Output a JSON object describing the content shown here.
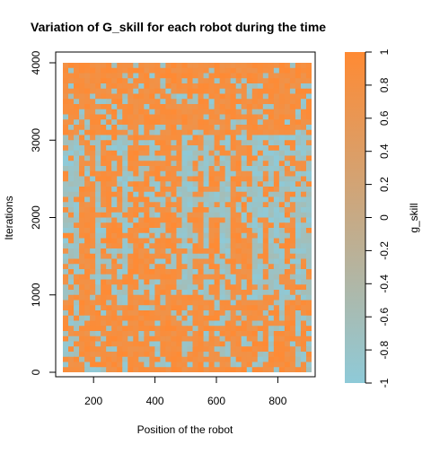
{
  "chart_data": {
    "type": "heatmap",
    "title": "Variation of G_skill for each robot during the time",
    "xlabel": "Position of the robot",
    "ylabel": "Iterations",
    "xlim": [
      100,
      910
    ],
    "ylim": [
      0,
      4000
    ],
    "x_ticks": [
      "200",
      "400",
      "600",
      "800"
    ],
    "y_ticks": [
      "0",
      "1000",
      "2000",
      "3000",
      "4000"
    ],
    "colorbar": {
      "label": "g_skill",
      "range": [
        -1,
        1
      ],
      "ticks": [
        "-1",
        "-0.8",
        "-0.6",
        "-0.4",
        "-0.2",
        "0",
        "0.2",
        "0.4",
        "0.6",
        "0.8",
        "1"
      ],
      "low_color": "#8ECAD8",
      "high_color": "#FF8A33"
    },
    "pattern": {
      "description_bands": [
        {
          "iterations": [
            0,
            1000
          ],
          "dominant": "orange with light-blue streaks"
        },
        {
          "iterations": [
            1000,
            3050
          ],
          "dominant": "light-blue background with vertical orange stripes"
        },
        {
          "iterations": [
            3050,
            4000
          ],
          "dominant": "mostly orange"
        }
      ],
      "orange_stripe_x": [
        175,
        195,
        240,
        255,
        280,
        330,
        370,
        395,
        420,
        455,
        480,
        540,
        600,
        665,
        700,
        760,
        835
      ]
    }
  }
}
